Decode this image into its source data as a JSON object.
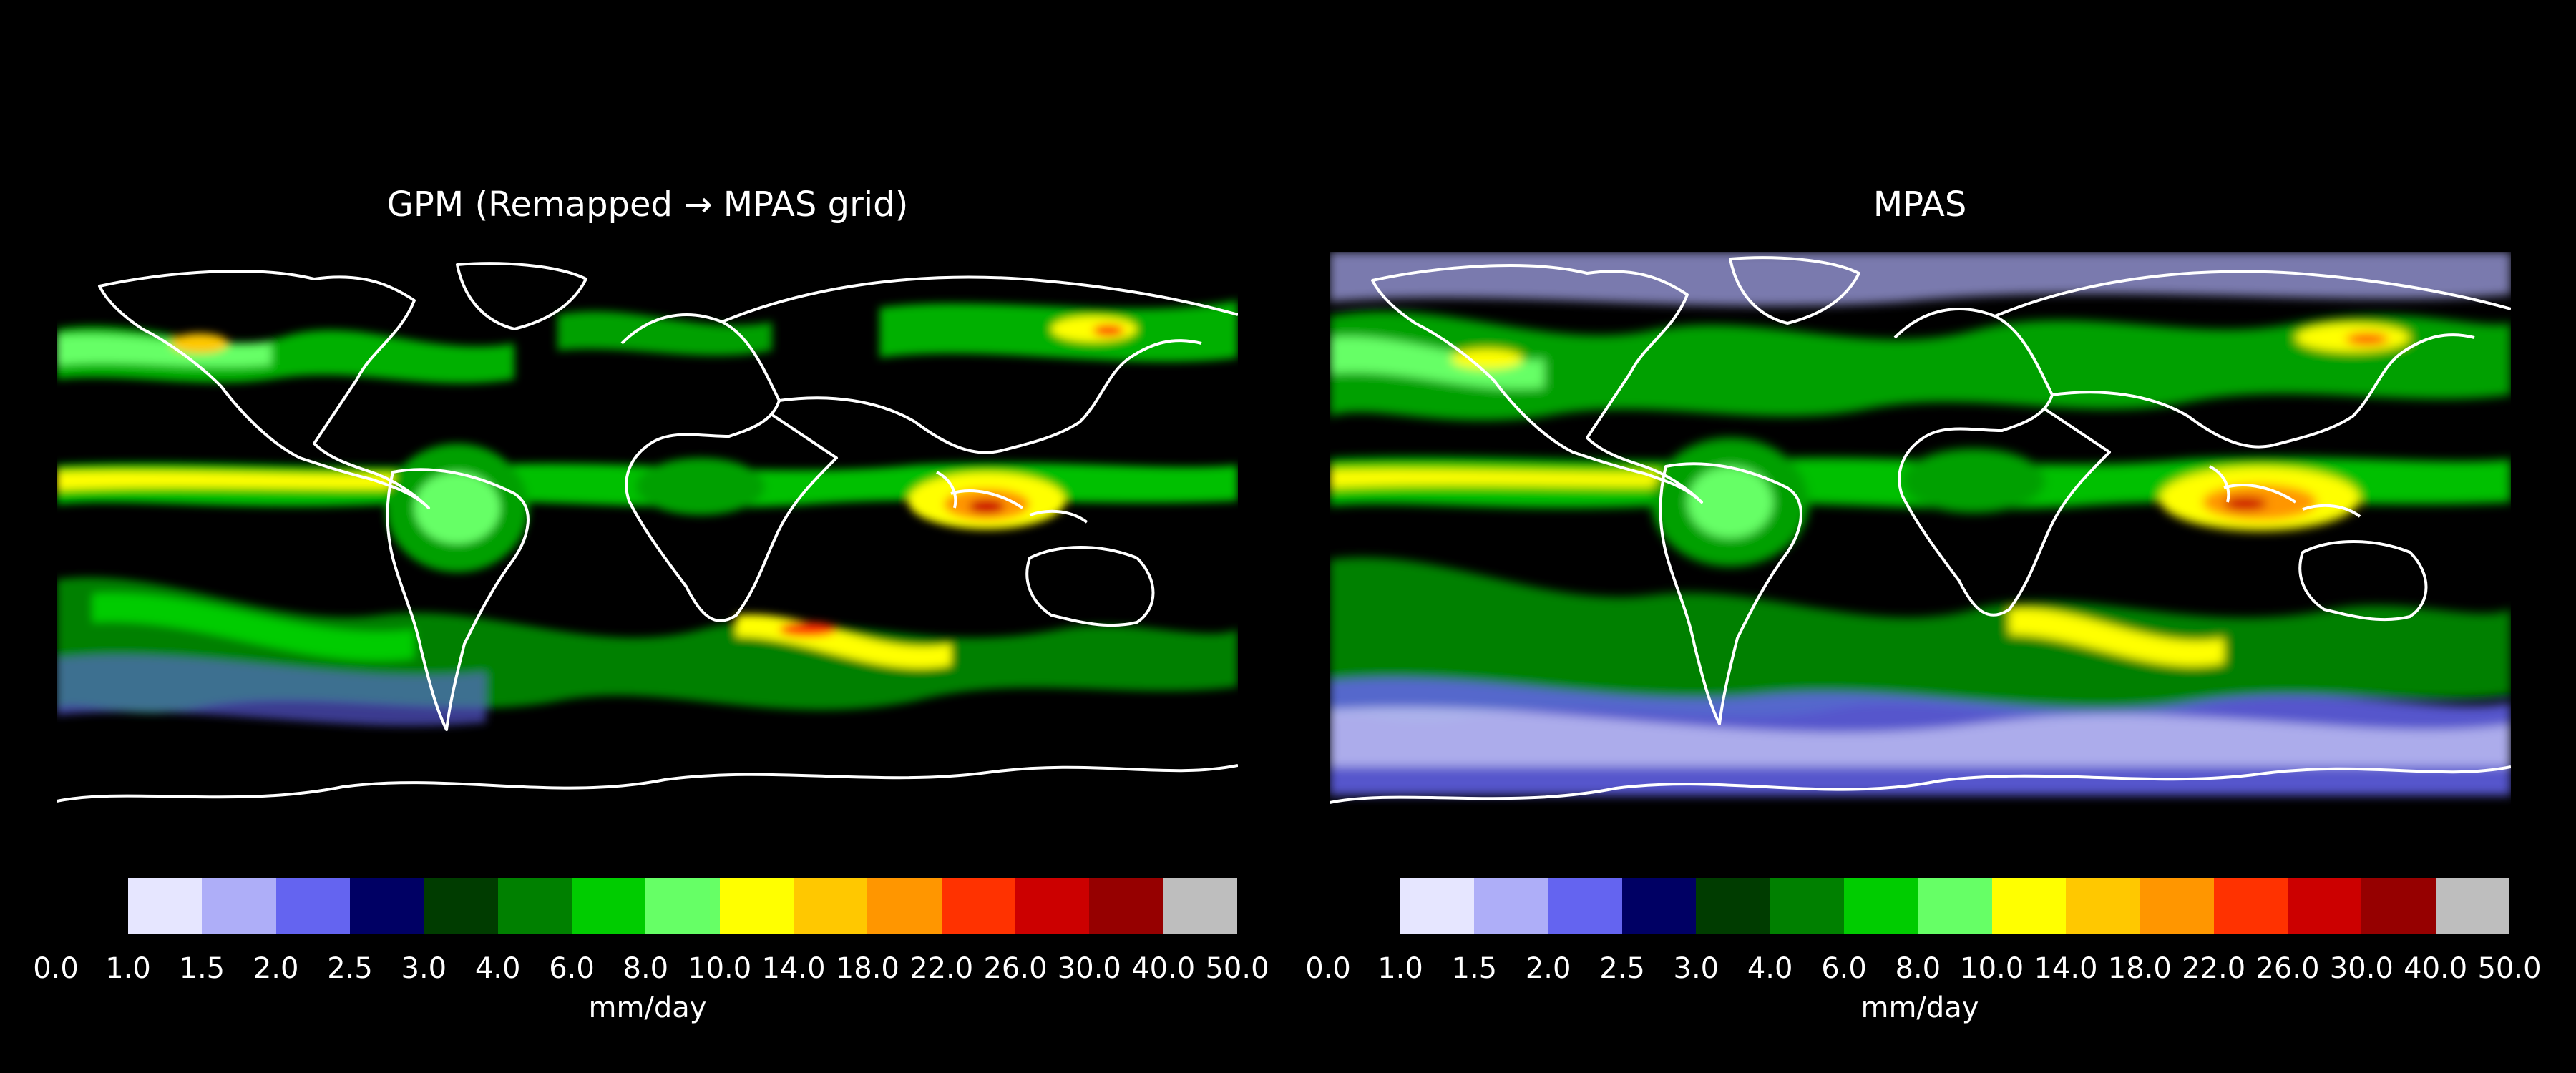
{
  "figure": {
    "background": "#000000"
  },
  "chart_data": [
    {
      "type": "heatmap",
      "title": "GPM (Remapped → MPAS grid)",
      "colorbar": {
        "label": "mm/day",
        "ticks": [
          "0.0",
          "1.0",
          "1.5",
          "2.0",
          "2.5",
          "3.0",
          "4.0",
          "6.0",
          "8.0",
          "10.0",
          "14.0",
          "18.0",
          "22.0",
          "26.0",
          "30.0",
          "40.0",
          "50.0"
        ],
        "colors": [
          "#e6e6ff",
          "#aeaef8",
          "#6464f0",
          "#000064",
          "#003c00",
          "#008000",
          "#00cc00",
          "#66ff66",
          "#ffff00",
          "#ffc800",
          "#ff9600",
          "#ff3200",
          "#cc0000",
          "#960000",
          "#bebebe"
        ]
      },
      "map": "global precipitation field with coastline outlines"
    },
    {
      "type": "heatmap",
      "title": "MPAS",
      "colorbar": {
        "label": "mm/day",
        "ticks": [
          "0.0",
          "1.0",
          "1.5",
          "2.0",
          "2.5",
          "3.0",
          "4.0",
          "6.0",
          "8.0",
          "10.0",
          "14.0",
          "18.0",
          "22.0",
          "26.0",
          "30.0",
          "40.0",
          "50.0"
        ],
        "colors": [
          "#e6e6ff",
          "#aeaef8",
          "#6464f0",
          "#000064",
          "#003c00",
          "#008000",
          "#00cc00",
          "#66ff66",
          "#ffff00",
          "#ffc800",
          "#ff9600",
          "#ff3200",
          "#cc0000",
          "#960000",
          "#bebebe"
        ]
      },
      "map": "global precipitation field with coastline outlines"
    }
  ]
}
